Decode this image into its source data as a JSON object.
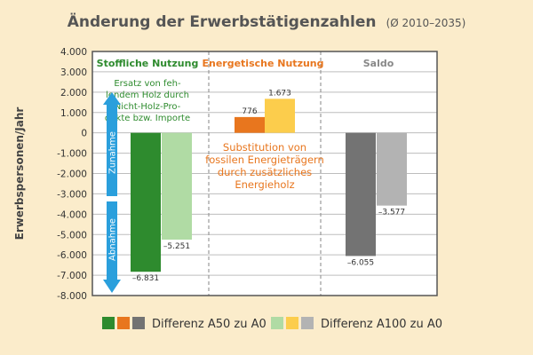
{
  "chart_data": {
    "type": "bar",
    "title": "Änderung der Erwerbstätigenzahlen",
    "subtitle": "(Ø 2010–2035)",
    "ylabel": "Erwerbspersonen/Jahr",
    "ylim": [
      -8000,
      4000
    ],
    "yticks": [
      "4.000",
      "3.000",
      "2.000",
      "1.000",
      "0",
      "-1.000",
      "-2.000",
      "-3.000",
      "-4.000",
      "-5.000",
      "-6.000",
      "-7.000",
      "-8.000"
    ],
    "grid": true,
    "groups": [
      {
        "label": "Stoffliche Nutzung",
        "color": "#2e8b2e"
      },
      {
        "label": "Energetische Nutzung",
        "color": "#e8761e"
      },
      {
        "label": "Saldo",
        "color": "#888888"
      }
    ],
    "series": [
      {
        "name": "Differenz A50 zu A0",
        "values": [
          -6831,
          776,
          -6055
        ],
        "labels": [
          "–6.831",
          "776",
          "–6.055"
        ],
        "colors": [
          "#2e8b2e",
          "#e8761e",
          "#737373"
        ]
      },
      {
        "name": "Differenz A100 zu A0",
        "values": [
          -5251,
          1673,
          -3577
        ],
        "labels": [
          "–5.251",
          "1.673",
          "–3.577"
        ],
        "colors": [
          "#b0dba4",
          "#fccd4c",
          "#b3b3b3"
        ]
      }
    ],
    "annotations": {
      "green": [
        "Ersatz von feh-",
        "lendem Holz durch",
        "Nicht-Holz-Pro-",
        "dukte bzw. Importe"
      ],
      "orange": [
        "Substitution von",
        "fossilen Energieträgern",
        "durch zusätzliches",
        "Energieholz"
      ],
      "arrow_up": "Zunahme",
      "arrow_down": "Abnahme"
    },
    "colors": {
      "background": "#fbeccb",
      "plot_bg": "#ffffff",
      "arrow": "#2a9fdc"
    }
  }
}
